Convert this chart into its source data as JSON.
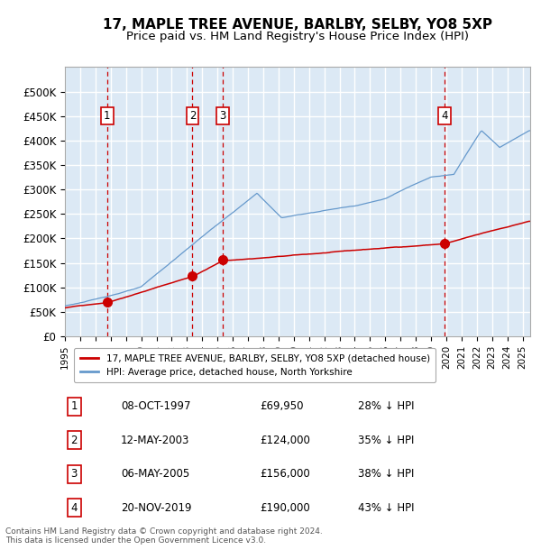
{
  "title": "17, MAPLE TREE AVENUE, BARLBY, SELBY, YO8 5XP",
  "subtitle": "Price paid vs. HM Land Registry's House Price Index (HPI)",
  "title_fontsize": 11,
  "subtitle_fontsize": 9.5,
  "background_color": "#dce9f5",
  "plot_bg_color": "#dce9f5",
  "grid_color": "#ffffff",
  "hpi_line_color": "#6699cc",
  "price_line_color": "#cc0000",
  "marker_color": "#cc0000",
  "vline_color": "#cc0000",
  "xlim": [
    1995.0,
    2025.5
  ],
  "ylim": [
    0,
    550000
  ],
  "yticks": [
    0,
    50000,
    100000,
    150000,
    200000,
    250000,
    300000,
    350000,
    400000,
    450000,
    500000
  ],
  "ytick_labels": [
    "£0",
    "£50K",
    "£100K",
    "£150K",
    "£200K",
    "£250K",
    "£300K",
    "£350K",
    "£400K",
    "£450K",
    "£500K"
  ],
  "xticks": [
    1995,
    1996,
    1997,
    1998,
    1999,
    2000,
    2001,
    2002,
    2003,
    2004,
    2005,
    2006,
    2007,
    2008,
    2009,
    2010,
    2011,
    2012,
    2013,
    2014,
    2015,
    2016,
    2017,
    2018,
    2019,
    2020,
    2021,
    2022,
    2023,
    2024,
    2025
  ],
  "sale_dates": [
    1997.77,
    2003.36,
    2005.35,
    2019.89
  ],
  "sale_prices": [
    69950,
    124000,
    156000,
    190000
  ],
  "sale_labels": [
    "1",
    "2",
    "3",
    "4"
  ],
  "legend_line1": "17, MAPLE TREE AVENUE, BARLBY, SELBY, YO8 5XP (detached house)",
  "legend_line2": "HPI: Average price, detached house, North Yorkshire",
  "table_entries": [
    {
      "num": "1",
      "date": "08-OCT-1997",
      "price": "£69,950",
      "pct": "28% ↓ HPI"
    },
    {
      "num": "2",
      "date": "12-MAY-2003",
      "price": "£124,000",
      "pct": "35% ↓ HPI"
    },
    {
      "num": "3",
      "date": "06-MAY-2005",
      "price": "£156,000",
      "pct": "38% ↓ HPI"
    },
    {
      "num": "4",
      "date": "20-NOV-2019",
      "price": "£190,000",
      "pct": "43% ↓ HPI"
    }
  ],
  "footer": "Contains HM Land Registry data © Crown copyright and database right 2024.\nThis data is licensed under the Open Government Licence v3.0."
}
